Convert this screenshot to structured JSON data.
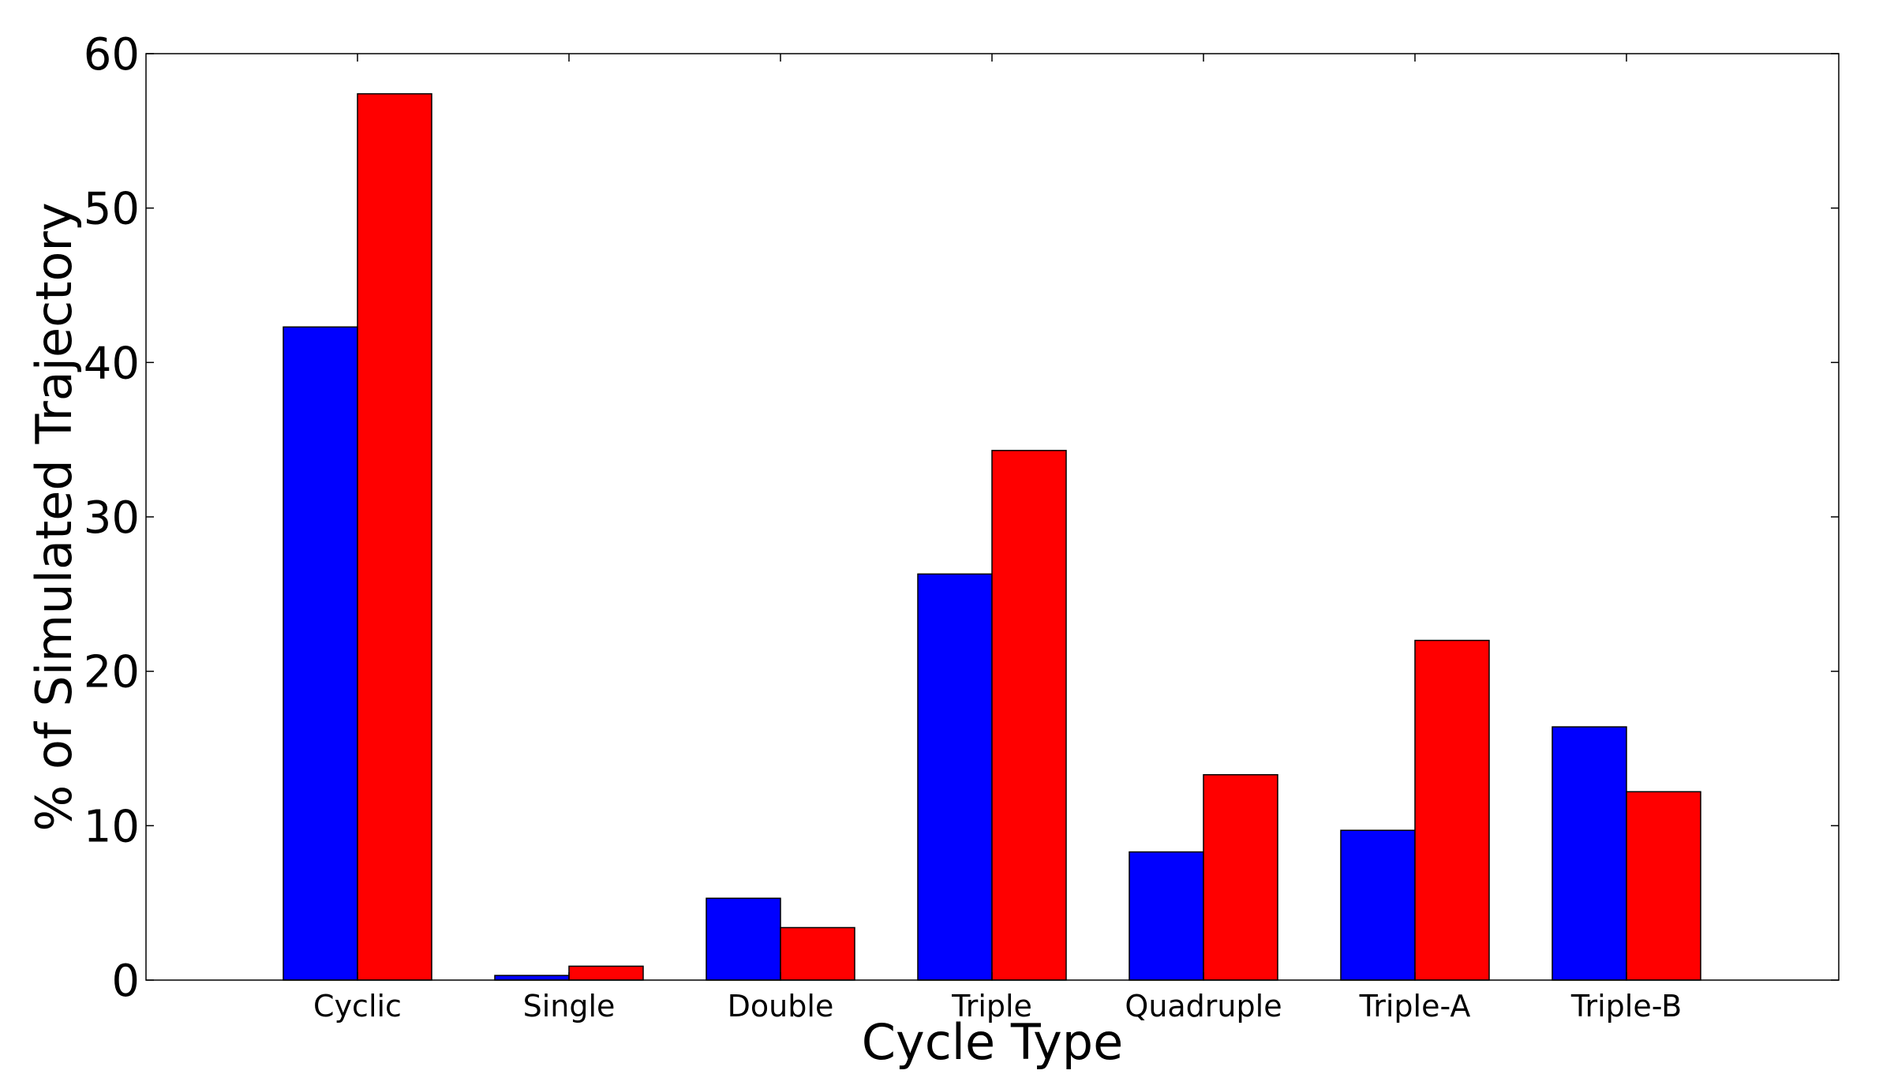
{
  "chart_data": {
    "type": "bar",
    "title": "",
    "xlabel": "Cycle Type",
    "ylabel": "% of Simulated Trajectory",
    "categories": [
      "Cyclic",
      "Single",
      "Double",
      "Triple",
      "Quadruple",
      "Triple-A",
      "Triple-B"
    ],
    "series": [
      {
        "color": "#0000ff",
        "values": [
          42.3,
          0.3,
          5.3,
          26.3,
          8.3,
          9.7,
          16.4
        ]
      },
      {
        "color": "#ff0000",
        "values": [
          57.4,
          0.9,
          3.4,
          34.3,
          13.3,
          22.0,
          12.2
        ]
      }
    ],
    "ylim": [
      0,
      60
    ],
    "yticks": [
      0,
      10,
      20,
      30,
      40,
      50,
      60
    ],
    "grid": false,
    "legend": "none"
  }
}
